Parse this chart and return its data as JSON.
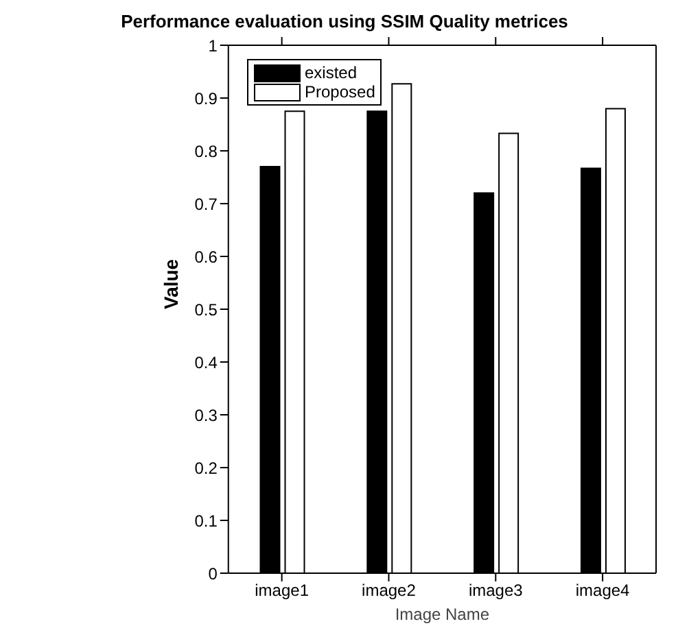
{
  "chart_data": {
    "type": "bar",
    "title": "Performance evaluation using SSIM Quality metrices",
    "xlabel": "Image Name",
    "ylabel": "Value",
    "categories": [
      "image1",
      "image2",
      "image3",
      "image4"
    ],
    "series": [
      {
        "name": "existed",
        "color": "#000000",
        "values": [
          0.77,
          0.875,
          0.72,
          0.767
        ]
      },
      {
        "name": "Proposed",
        "color": "#ffffff",
        "values": [
          0.875,
          0.927,
          0.833,
          0.88
        ]
      }
    ],
    "ylim": [
      0,
      1
    ],
    "yticks": [
      0,
      0.1,
      0.2,
      0.3,
      0.4,
      0.5,
      0.6,
      0.7,
      0.8,
      0.9,
      1
    ],
    "grid": false,
    "legend": "top left"
  }
}
